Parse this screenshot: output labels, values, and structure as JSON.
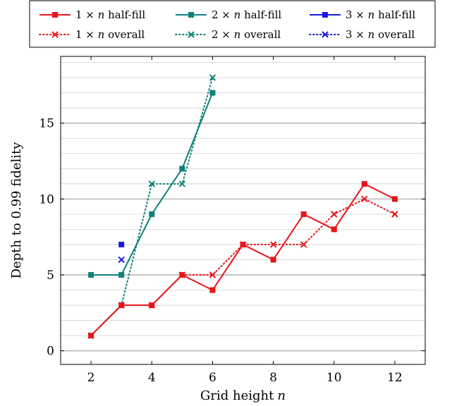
{
  "chart_data": {
    "type": "line",
    "xlabel": "Grid height",
    "xlabel_var": "n",
    "ylabel": "Depth to 0.99 fidelity",
    "xlim": [
      1,
      13
    ],
    "ylim": [
      -0.9,
      19.4
    ],
    "xticks": [
      2,
      4,
      6,
      8,
      10,
      12
    ],
    "yticks": [
      0,
      5,
      10,
      15
    ],
    "grid": "horizontal",
    "legend_position": "top",
    "colors": {
      "red": "#e8141a",
      "teal": "#10807a",
      "blue": "#1a1ae6"
    },
    "series": [
      {
        "name": "1 × n half-fill",
        "color": "#e8141a",
        "style": "solid",
        "marker": "square",
        "x": [
          2,
          3,
          4,
          5,
          6,
          7,
          8,
          9,
          10,
          11,
          12
        ],
        "y": [
          1,
          3,
          3,
          5,
          4,
          7,
          6,
          9,
          8,
          11,
          10
        ]
      },
      {
        "name": "2 × n half-fill",
        "color": "#10807a",
        "style": "solid",
        "marker": "square",
        "x": [
          2,
          3,
          4,
          5,
          6
        ],
        "y": [
          5,
          5,
          9,
          12,
          17
        ]
      },
      {
        "name": "3 × n half-fill",
        "color": "#1a1ae6",
        "style": "solid",
        "marker": "square",
        "x": [
          3
        ],
        "y": [
          7
        ]
      },
      {
        "name": "1 × n overall",
        "color": "#e8141a",
        "style": "dotted",
        "marker": "cross",
        "x": [
          2,
          3,
          4,
          5,
          6,
          7,
          8,
          9,
          10,
          11,
          12
        ],
        "y": [
          1,
          3,
          3,
          5,
          5,
          7,
          7,
          7,
          9,
          10,
          9
        ]
      },
      {
        "name": "2 × n overall",
        "color": "#10807a",
        "style": "dotted",
        "marker": "cross",
        "x": [
          2,
          3,
          4,
          5,
          6
        ],
        "y": [
          1,
          3,
          11,
          11,
          18
        ]
      },
      {
        "name": "3 × n overall",
        "color": "#1a1ae6",
        "style": "dotted",
        "marker": "cross",
        "x": [
          3
        ],
        "y": [
          6
        ]
      }
    ],
    "legend": [
      {
        "prefix": "1 × ",
        "var": "n",
        "suffix": " half-fill"
      },
      {
        "prefix": "2 × ",
        "var": "n",
        "suffix": " half-fill"
      },
      {
        "prefix": "3 × ",
        "var": "n",
        "suffix": " half-fill"
      },
      {
        "prefix": "1 × ",
        "var": "n",
        "suffix": " overall"
      },
      {
        "prefix": "2 × ",
        "var": "n",
        "suffix": " overall"
      },
      {
        "prefix": "3 × ",
        "var": "n",
        "suffix": " overall"
      }
    ]
  }
}
